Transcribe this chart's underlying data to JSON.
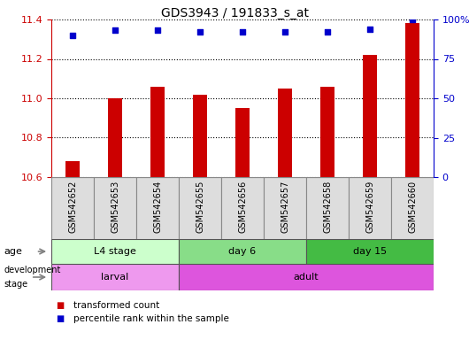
{
  "title": "GDS3943 / 191833_s_at",
  "samples": [
    "GSM542652",
    "GSM542653",
    "GSM542654",
    "GSM542655",
    "GSM542656",
    "GSM542657",
    "GSM542658",
    "GSM542659",
    "GSM542660"
  ],
  "transformed_count": [
    10.68,
    11.0,
    11.06,
    11.02,
    10.95,
    11.05,
    11.06,
    11.22,
    11.38
  ],
  "percentile_rank": [
    90,
    93,
    93,
    92,
    92,
    92,
    92,
    94,
    100
  ],
  "ylim_left": [
    10.6,
    11.4
  ],
  "ylim_right": [
    0,
    100
  ],
  "yticks_left": [
    10.6,
    10.8,
    11.0,
    11.2,
    11.4
  ],
  "yticks_right": [
    0,
    25,
    50,
    75,
    100
  ],
  "bar_color": "#cc0000",
  "dot_color": "#0000cc",
  "grid_color": "#000000",
  "age_groups": [
    {
      "label": "L4 stage",
      "start": 0,
      "end": 3,
      "color": "#ccffcc"
    },
    {
      "label": "day 6",
      "start": 3,
      "end": 6,
      "color": "#88dd88"
    },
    {
      "label": "day 15",
      "start": 6,
      "end": 9,
      "color": "#44bb44"
    }
  ],
  "dev_groups": [
    {
      "label": "larval",
      "start": 0,
      "end": 3,
      "color": "#ee99ee"
    },
    {
      "label": "adult",
      "start": 3,
      "end": 9,
      "color": "#dd55dd"
    }
  ],
  "legend_bar_label": "transformed count",
  "legend_dot_label": "percentile rank within the sample",
  "age_label": "age",
  "dev_label": "development stage",
  "left_axis_color": "#cc0000",
  "right_axis_color": "#0000cc",
  "xtick_bg": "#dddddd",
  "xtick_border": "#888888"
}
